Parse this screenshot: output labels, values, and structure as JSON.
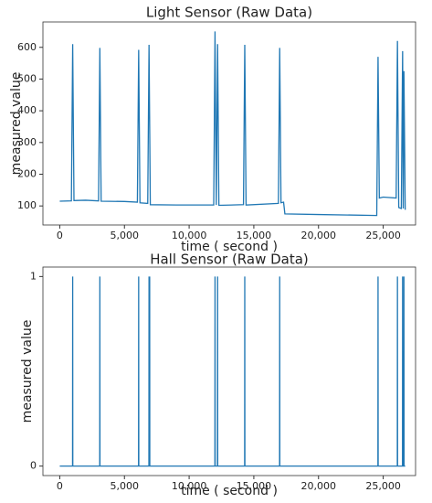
{
  "chart_data": [
    {
      "type": "line",
      "title": "Light Sensor (Raw Data)",
      "x_label": "time ( second )",
      "y_label": "measured value",
      "x": [
        0,
        900,
        1000,
        1100,
        2000,
        3000,
        3100,
        3200,
        5000,
        6000,
        6100,
        6200,
        6800,
        6900,
        7000,
        9000,
        11900,
        12000,
        12100,
        12200,
        12300,
        14200,
        14300,
        14400,
        16900,
        17000,
        17100,
        17300,
        17400,
        20000,
        24500,
        24600,
        24700,
        25000,
        26000,
        26100,
        26200,
        26400,
        26500,
        26550,
        26600,
        26700
      ],
      "series": [
        {
          "name": "light",
          "color": "#1f77b4",
          "values": [
            115,
            116,
            610,
            117,
            118,
            116,
            598,
            115,
            114,
            112,
            592,
            110,
            108,
            608,
            104,
            103,
            103,
            650,
            103,
            610,
            102,
            104,
            608,
            103,
            108,
            598,
            110,
            112,
            75,
            73,
            70,
            570,
            125,
            128,
            125,
            620,
            95,
            92,
            588,
            92,
            525,
            88
          ]
        }
      ],
      "xlim": [
        -1300,
        27500
      ],
      "xticks": [
        0,
        {
          "value": 5000,
          "label": "5,000"
        },
        {
          "value": 10000,
          "label": "10,000"
        },
        {
          "value": 15000,
          "label": "15,000"
        },
        {
          "value": 20000,
          "label": "20,000"
        },
        {
          "value": 25000,
          "label": "25,000"
        }
      ],
      "ylim": [
        40,
        680
      ],
      "yticks": [
        100,
        200,
        300,
        400,
        500,
        600
      ]
    },
    {
      "type": "line",
      "title": "Hall Sensor (Raw Data)",
      "x_label": "time ( second )",
      "y_label": "measured value",
      "x": [
        0,
        990,
        1000,
        1010,
        3090,
        3100,
        3110,
        6090,
        6100,
        6110,
        6890,
        6900,
        6910,
        6940,
        6950,
        6960,
        11990,
        12000,
        12010,
        12190,
        12200,
        12210,
        14290,
        14300,
        14310,
        16990,
        17000,
        17010,
        24590,
        24600,
        24610,
        26090,
        26100,
        26110,
        26490,
        26500,
        26510,
        26590,
        26600,
        26610,
        26700
      ],
      "series": [
        {
          "name": "hall",
          "color": "#1f77b4",
          "values": [
            0,
            0,
            1,
            0,
            0,
            1,
            0,
            0,
            1,
            0,
            0,
            1,
            0,
            0,
            1,
            0,
            0,
            1,
            0,
            0,
            1,
            0,
            0,
            1,
            0,
            0,
            1,
            0,
            0,
            1,
            0,
            0,
            1,
            0,
            0,
            1,
            0,
            0,
            1,
            0,
            0
          ]
        }
      ],
      "xlim": [
        -1300,
        27500
      ],
      "xticks": [
        0,
        {
          "value": 5000,
          "label": "5,000"
        },
        {
          "value": 10000,
          "label": "10,000"
        },
        {
          "value": 15000,
          "label": "15,000"
        },
        {
          "value": 20000,
          "label": "20,000"
        },
        {
          "value": 25000,
          "label": "25,000"
        }
      ],
      "ylim": [
        -0.05,
        1.05
      ],
      "yticks": [
        0,
        1
      ]
    }
  ]
}
